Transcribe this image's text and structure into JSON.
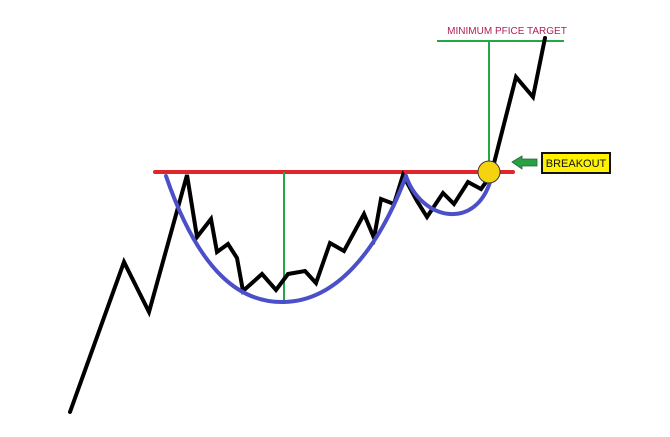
{
  "labels": {
    "price_target": "MINIMUM PFICE TARGET",
    "breakout": "BREAKOUT"
  },
  "colors": {
    "background": "#ffffff",
    "price_line": "#000000",
    "resistance_line": "#e0262b",
    "cup_curve": "#4b4fc8",
    "measure_lines": "#23a845",
    "target_text": "#b01f5a",
    "breakout_box_fill": "#fff200",
    "breakout_box_border": "#111111",
    "breakout_marker": "#f5d40f",
    "arrow": "#2a9f46"
  },
  "icons": {
    "breakout_arrow": "left-arrow-icon",
    "breakout_marker": "circle-marker"
  }
}
